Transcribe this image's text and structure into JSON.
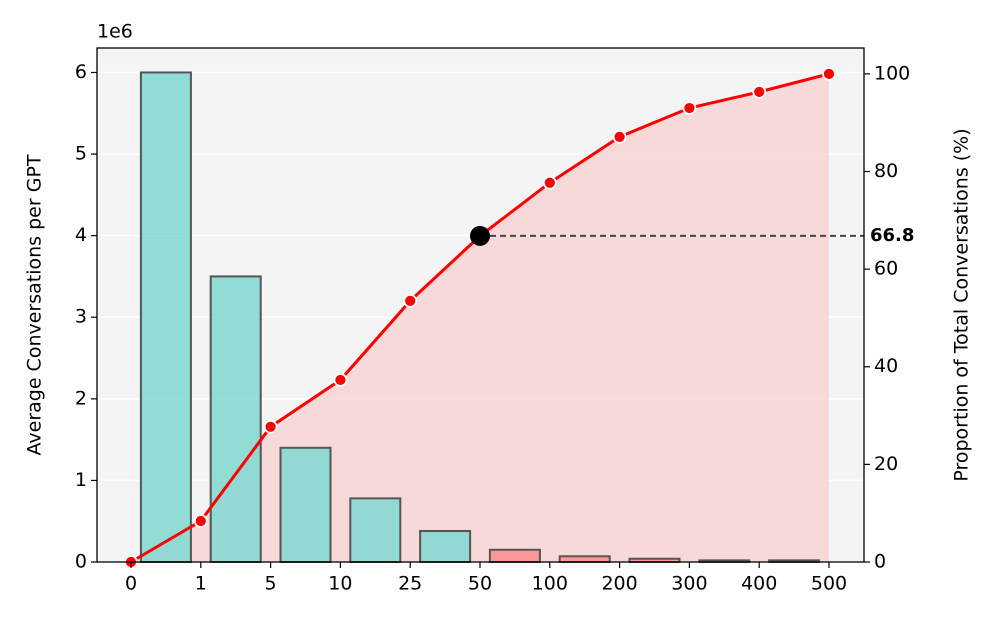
{
  "chart_data": {
    "type": "bar_line",
    "y_offset_label": "1e6",
    "ylabel": "Average Conversations per GPT",
    "y2label": "Proportion of Total Conversations (%)",
    "categories": [
      "0",
      "1",
      "5",
      "10",
      "25",
      "50",
      "100",
      "200",
      "300",
      "400",
      "500"
    ],
    "bars": {
      "values": [
        6.0,
        3.5,
        1.4,
        0.78,
        0.38,
        0.15,
        0.07,
        0.04,
        0.02,
        0.02
      ],
      "colors": [
        "#7fd8d0",
        "#7fd8d0",
        "#7fd8d0",
        "#7fd8d0",
        "#7fd8d0",
        "#ff8c8c",
        "#ff8c8c",
        "#ff8c8c",
        "#ff8c8c",
        "#ff8c8c"
      ]
    },
    "line": {
      "axis": "y2",
      "color": "#ff0000",
      "fill": "#f8d4d4",
      "values": [
        0,
        8.4,
        27.7,
        37.3,
        53.5,
        66.8,
        77.7,
        87.1,
        93.0,
        96.3,
        100
      ]
    },
    "highlight": {
      "category": "50",
      "value": 66.8
    },
    "ylim": [
      0,
      6.3
    ],
    "yticks": [
      0,
      1,
      2,
      3,
      4,
      5,
      6
    ],
    "y2lim": [
      0,
      105.3
    ],
    "y2ticks": [
      0,
      20,
      40,
      60,
      80,
      100
    ],
    "grid": true
  }
}
